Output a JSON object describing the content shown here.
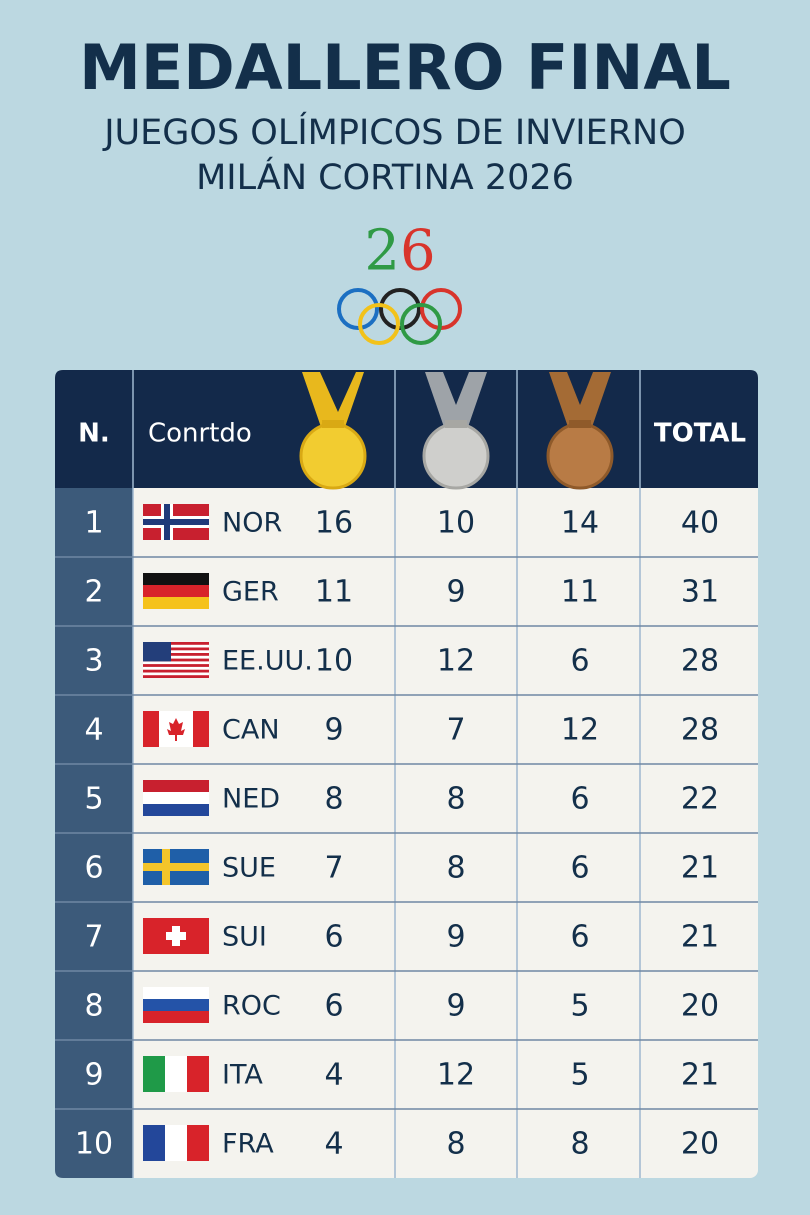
{
  "header": {
    "title": "MEDALLERO FINAL",
    "subtitle": [
      "JUEGOS OLÍMPICOS DE INVIERNO",
      "MILÁN CORTINA 2026"
    ],
    "logo": "26"
  },
  "table": {
    "header": [
      "N.",
      "Conrtdo",
      "TOTAL"
    ],
    "rows": [
      [
        1,
        "NOR",
        16,
        10,
        14,
        40
      ],
      [
        2,
        "GER",
        11,
        9,
        11,
        31
      ],
      [
        3,
        "EE.UU.",
        10,
        12,
        6,
        28
      ],
      [
        4,
        "CAN",
        9,
        7,
        12,
        28
      ],
      [
        5,
        "NED",
        8,
        8,
        6,
        22
      ],
      [
        6,
        "SUE",
        7,
        8,
        6,
        21
      ],
      [
        7,
        "SUI",
        6,
        9,
        6,
        21
      ],
      [
        8,
        "ROC",
        6,
        9,
        5,
        20
      ],
      [
        9,
        "ITA",
        4,
        12,
        5,
        21
      ],
      [
        10,
        "FRA",
        4,
        8,
        8,
        20
      ]
    ]
  }
}
